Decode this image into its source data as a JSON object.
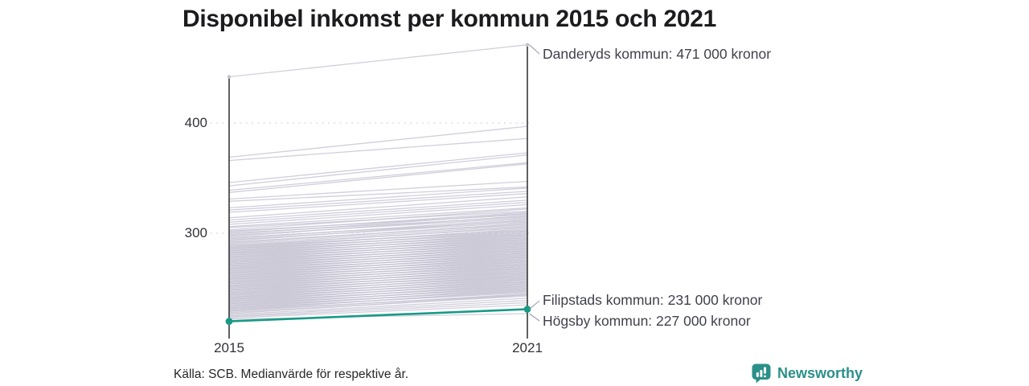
{
  "title": "Disponibel inkomst per kommun 2015 och 2021",
  "source_note": "Källa: SCB. Medianvärde för respektive år.",
  "branding": {
    "name": "Newsworthy",
    "logo_icon": "bar-chart-speech-bubble"
  },
  "colors": {
    "accent": "#189a86",
    "brand": "#2b9089",
    "line": "#c6c3d3",
    "grid": "#dcdae4",
    "axis": "#1c1c1c",
    "callout": "#9d9da8",
    "text": "#41414c",
    "title": "#1c1c1f"
  },
  "chart_data": {
    "type": "line",
    "subtype": "slope-chart",
    "title": "Disponibel inkomst per kommun 2015 och 2021",
    "x_categories": [
      "2015",
      "2021"
    ],
    "y_ticks": [
      {
        "label": "400",
        "value": 400
      },
      {
        "label": "300",
        "value": 300
      }
    ],
    "grid": "dotted-horizontal",
    "ylim": [
      209,
      480
    ],
    "highlight": {
      "name": "Filipstads kommun",
      "values": [
        220,
        231
      ]
    },
    "annotations": [
      {
        "text": "Danderyds kommun: 471 000 kronor",
        "x": "2021",
        "value": 471
      },
      {
        "text": "Filipstads kommun: 231 000 kronor",
        "x": "2021",
        "value": 231
      },
      {
        "text": "Högsby kommun: 227 000 kronor",
        "x": "2021",
        "value": 227
      }
    ],
    "lines": [
      [
        442,
        471
      ],
      [
        369,
        397
      ],
      [
        366,
        386
      ],
      [
        346,
        373
      ],
      [
        343,
        371
      ],
      [
        339,
        364
      ],
      [
        337,
        363
      ],
      [
        331,
        347
      ],
      [
        329,
        342
      ],
      [
        323,
        341
      ],
      [
        321,
        338
      ],
      [
        319,
        336
      ],
      [
        314,
        333
      ],
      [
        312,
        330
      ],
      [
        310,
        328
      ],
      [
        308,
        326
      ],
      [
        306,
        323
      ],
      [
        305,
        320
      ],
      [
        303,
        322
      ],
      [
        302,
        317
      ],
      [
        301,
        319
      ],
      [
        300,
        315
      ],
      [
        299,
        318
      ],
      [
        298,
        314
      ],
      [
        297,
        316
      ],
      [
        296,
        311
      ],
      [
        295,
        313
      ],
      [
        294,
        310
      ],
      [
        293,
        312
      ],
      [
        292,
        308
      ],
      [
        291,
        309
      ],
      [
        290,
        307
      ],
      [
        289,
        305
      ],
      [
        288,
        306
      ],
      [
        287,
        303
      ],
      [
        286,
        304
      ],
      [
        285,
        301
      ],
      [
        284,
        302
      ],
      [
        283,
        299
      ],
      [
        282,
        300
      ],
      [
        281,
        297
      ],
      [
        280,
        298
      ],
      [
        279,
        295
      ],
      [
        278,
        296
      ],
      [
        277,
        293
      ],
      [
        276,
        294
      ],
      [
        275,
        291
      ],
      [
        274,
        292
      ],
      [
        273,
        289
      ],
      [
        272,
        290
      ],
      [
        271,
        287
      ],
      [
        270,
        288
      ],
      [
        269,
        285
      ],
      [
        268,
        286
      ],
      [
        267,
        283
      ],
      [
        266,
        284
      ],
      [
        265,
        281
      ],
      [
        264,
        282
      ],
      [
        263,
        279
      ],
      [
        262,
        280
      ],
      [
        261,
        277
      ],
      [
        260,
        278
      ],
      [
        259,
        275
      ],
      [
        258,
        276
      ],
      [
        257,
        273
      ],
      [
        256,
        274
      ],
      [
        255,
        271
      ],
      [
        254,
        272
      ],
      [
        253,
        269
      ],
      [
        252,
        270
      ],
      [
        251,
        267
      ],
      [
        250,
        268
      ],
      [
        249,
        265
      ],
      [
        248,
        266
      ],
      [
        247,
        263
      ],
      [
        246,
        264
      ],
      [
        245,
        261
      ],
      [
        244,
        262
      ],
      [
        243,
        259
      ],
      [
        242,
        260
      ],
      [
        241,
        257
      ],
      [
        240,
        258
      ],
      [
        239,
        255
      ],
      [
        238,
        256
      ],
      [
        237,
        253
      ],
      [
        236,
        254
      ],
      [
        235,
        251
      ],
      [
        234,
        252
      ],
      [
        233,
        249
      ],
      [
        232,
        250
      ],
      [
        231,
        247
      ],
      [
        230,
        248
      ],
      [
        229,
        245
      ],
      [
        228,
        243
      ],
      [
        227,
        244
      ],
      [
        226,
        241
      ],
      [
        225,
        239
      ],
      [
        224,
        237
      ],
      [
        223,
        235
      ],
      [
        288,
        302
      ],
      [
        284,
        298
      ],
      [
        280,
        294
      ],
      [
        276,
        290
      ],
      [
        272,
        286
      ],
      [
        268,
        282
      ],
      [
        264,
        278
      ],
      [
        260,
        274
      ],
      [
        256,
        270
      ],
      [
        252,
        266
      ],
      [
        248,
        262
      ],
      [
        244,
        258
      ],
      [
        240,
        254
      ],
      [
        236,
        250
      ],
      [
        232,
        246
      ],
      [
        286,
        300
      ],
      [
        282,
        296
      ],
      [
        278,
        292
      ],
      [
        274,
        288
      ],
      [
        266,
        280
      ],
      [
        262,
        276
      ],
      [
        258,
        272
      ],
      [
        254,
        268
      ],
      [
        250,
        264
      ],
      [
        246,
        260
      ],
      [
        242,
        256
      ],
      [
        238,
        252
      ],
      [
        234,
        248
      ],
      [
        230,
        244
      ],
      [
        270,
        284
      ],
      [
        222,
        227
      ]
    ]
  }
}
